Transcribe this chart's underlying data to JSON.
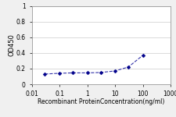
{
  "x": [
    0.03,
    0.1,
    0.3,
    1,
    3,
    10,
    30,
    100
  ],
  "y": [
    0.13,
    0.14,
    0.145,
    0.145,
    0.15,
    0.17,
    0.22,
    0.37
  ],
  "line_color": "#3333aa",
  "marker": "D",
  "marker_size": 2.5,
  "marker_color": "#00008b",
  "line_style": "--",
  "line_width": 0.8,
  "xlabel": "Recombinant ProteinConcentration(ng/ml)",
  "ylabel": "OD450",
  "xlim": [
    0.01,
    1000
  ],
  "ylim": [
    0,
    1
  ],
  "yticks": [
    0,
    0.2,
    0.4,
    0.6,
    0.8,
    1
  ],
  "xticks": [
    0.01,
    0.1,
    1,
    10,
    100,
    1000
  ],
  "xtick_labels": [
    "0.01",
    "0.1",
    "1",
    "10",
    "100",
    "1000"
  ],
  "xlabel_fontsize": 5.5,
  "ylabel_fontsize": 6,
  "tick_fontsize": 5.5,
  "background_color": "#f0f0f0",
  "plot_bg_color": "#ffffff",
  "grid_color": "#cccccc",
  "spine_color": "#999999"
}
